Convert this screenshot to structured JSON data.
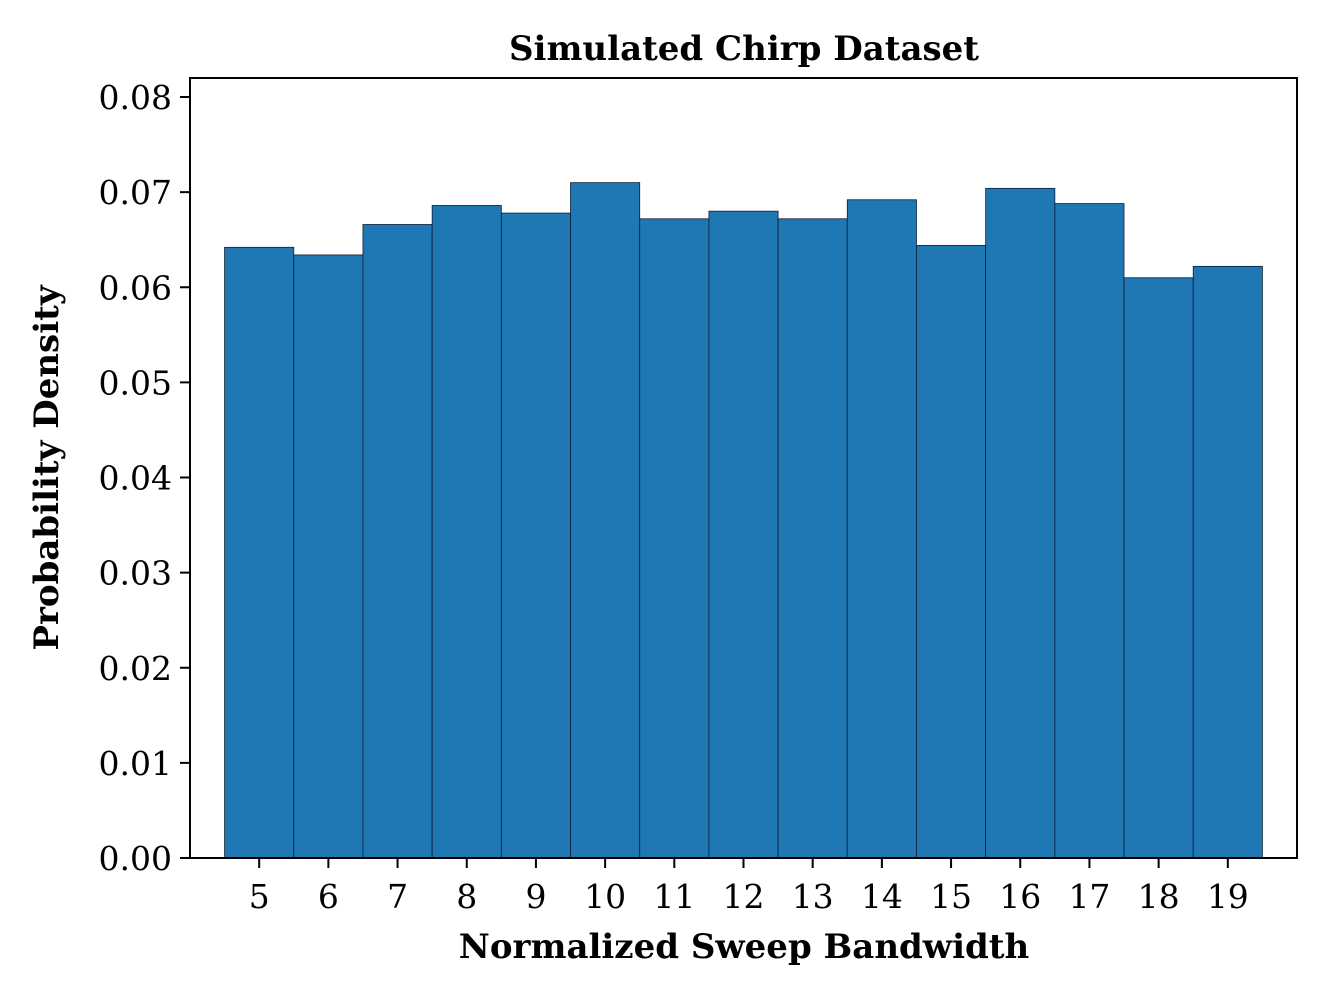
{
  "chart_data": {
    "type": "bar",
    "title": "Simulated Chirp Dataset",
    "xlabel": "Normalized Sweep Bandwidth",
    "ylabel": "Probability Density",
    "categories": [
      5,
      6,
      7,
      8,
      9,
      10,
      11,
      12,
      13,
      14,
      15,
      16,
      17,
      18,
      19
    ],
    "values": [
      0.0642,
      0.0634,
      0.0666,
      0.0686,
      0.0678,
      0.071,
      0.0672,
      0.068,
      0.0672,
      0.0692,
      0.0644,
      0.0704,
      0.0688,
      0.061,
      0.0622
    ],
    "xlim": [
      4,
      20
    ],
    "ylim": [
      0,
      0.082
    ],
    "yticks": [
      "0.00",
      "0.01",
      "0.02",
      "0.03",
      "0.04",
      "0.05",
      "0.06",
      "0.07",
      "0.08"
    ],
    "xticks": [
      "5",
      "6",
      "7",
      "8",
      "9",
      "10",
      "11",
      "12",
      "13",
      "14",
      "15",
      "16",
      "17",
      "18",
      "19"
    ],
    "grid": false,
    "bar_color": "#1f77b4",
    "edge_color": "#0b2035"
  }
}
